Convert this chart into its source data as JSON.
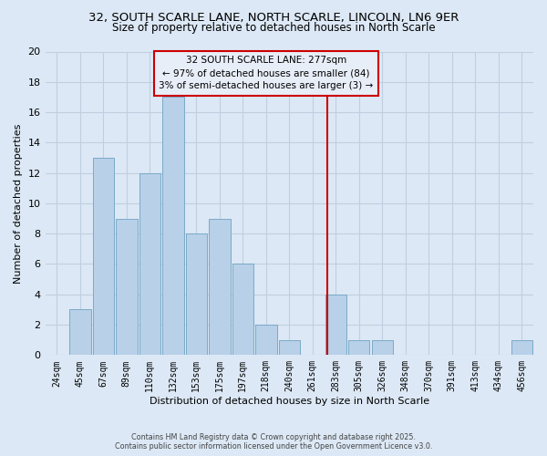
{
  "title_line1": "32, SOUTH SCARLE LANE, NORTH SCARLE, LINCOLN, LN6 9ER",
  "title_line2": "Size of property relative to detached houses in North Scarle",
  "xlabel": "Distribution of detached houses by size in North Scarle",
  "ylabel": "Number of detached properties",
  "bar_labels": [
    "24sqm",
    "45sqm",
    "67sqm",
    "89sqm",
    "110sqm",
    "132sqm",
    "153sqm",
    "175sqm",
    "197sqm",
    "218sqm",
    "240sqm",
    "261sqm",
    "283sqm",
    "305sqm",
    "326sqm",
    "348sqm",
    "370sqm",
    "391sqm",
    "413sqm",
    "434sqm",
    "456sqm"
  ],
  "bar_values": [
    0,
    3,
    13,
    9,
    12,
    17,
    8,
    9,
    6,
    2,
    1,
    0,
    4,
    1,
    1,
    0,
    0,
    0,
    0,
    0,
    1
  ],
  "bar_color": "#b8d0e8",
  "bar_edge_color": "#7aaac8",
  "ylim": [
    0,
    20
  ],
  "yticks": [
    0,
    2,
    4,
    6,
    8,
    10,
    12,
    14,
    16,
    18,
    20
  ],
  "vline_x": 11.62,
  "vline_color": "#cc0000",
  "annotation_title": "32 SOUTH SCARLE LANE: 277sqm",
  "annotation_line1": "← 97% of detached houses are smaller (84)",
  "annotation_line2": "3% of semi-detached houses are larger (3) →",
  "annotation_box_color": "#cc0000",
  "annotation_box_bg": "#e8eef8",
  "footer_line1": "Contains HM Land Registry data © Crown copyright and database right 2025.",
  "footer_line2": "Contains public sector information licensed under the Open Government Licence v3.0.",
  "background_color": "#dce8f5",
  "plot_bg_color": "#dce8f5",
  "grid_color": "#c0cfe0"
}
